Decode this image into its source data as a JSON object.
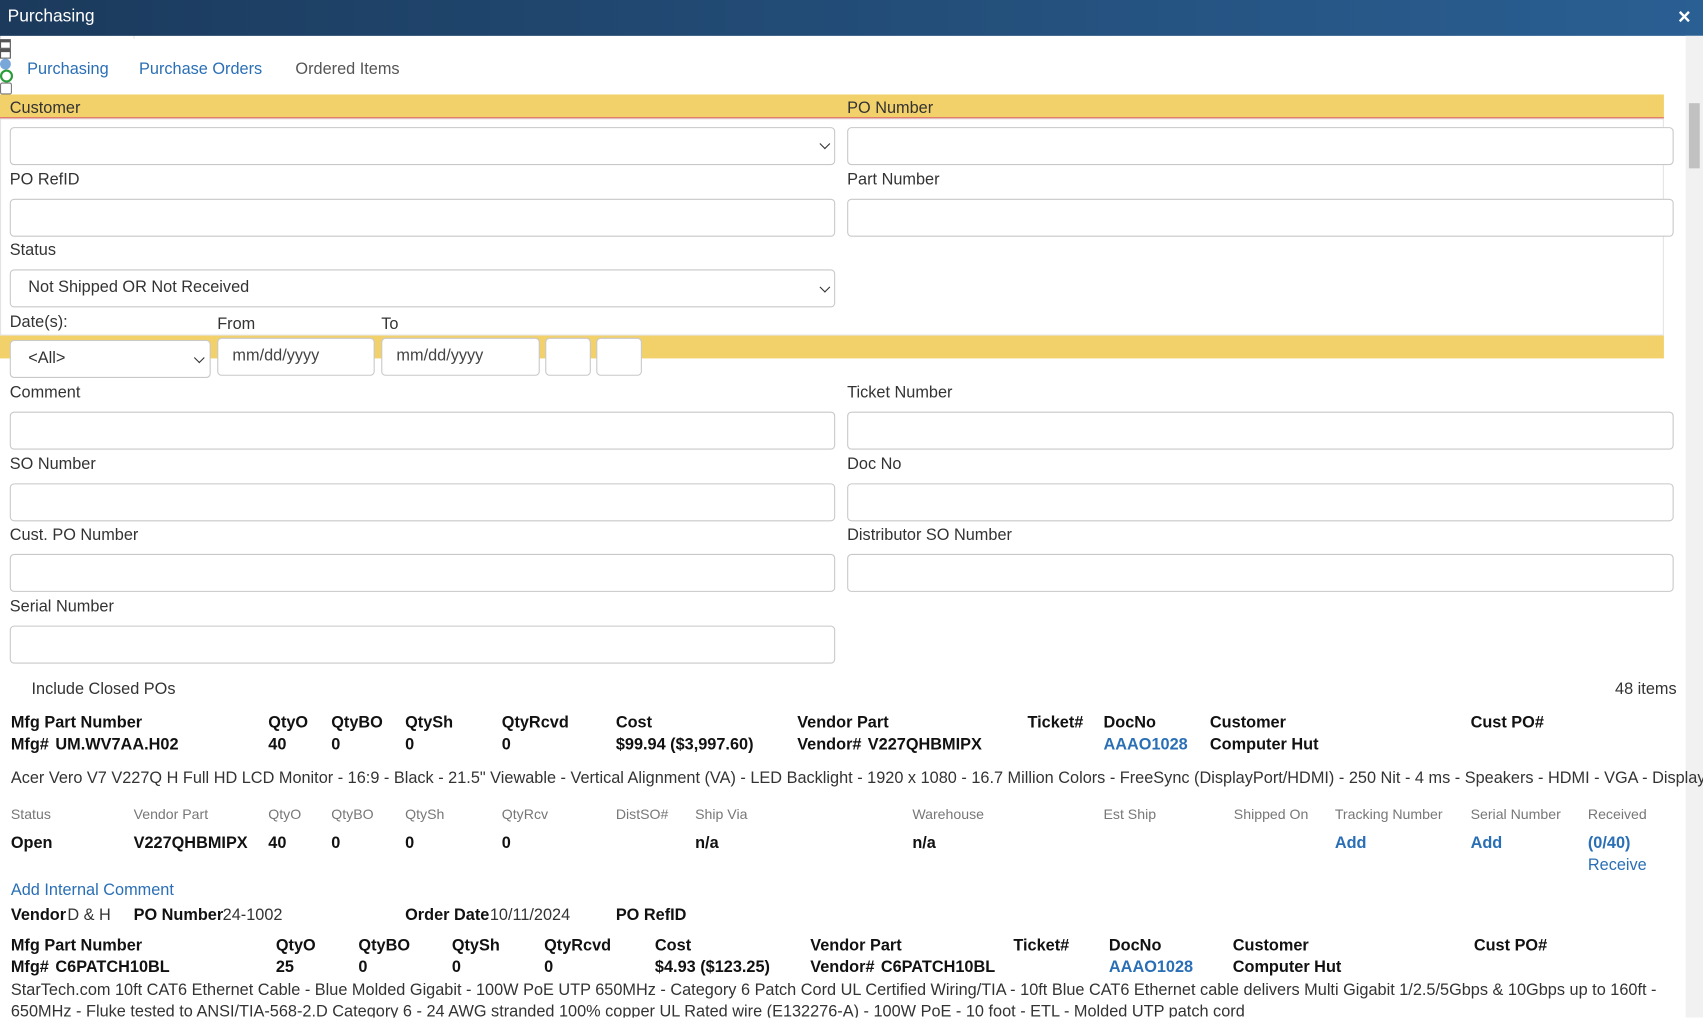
{
  "window": {
    "title": "Purchasing",
    "close": "×"
  },
  "tabs": [
    "Purchasing",
    "Purchase Orders",
    "Ordered Items"
  ],
  "filters": {
    "customer": "Customer",
    "po_number": "PO Number",
    "po_refid": "PO RefID",
    "part_number": "Part Number",
    "status": {
      "label": "Status",
      "value": "Not Shipped OR Not Received"
    },
    "dates": {
      "label": "Date(s):",
      "value": "<All>",
      "from": "From",
      "to": "To",
      "placeholder": "mm/dd/yyyy"
    },
    "comment": "Comment",
    "ticket_number": "Ticket Number",
    "so_number": "SO Number",
    "doc_no": "Doc No",
    "cust_po_number": "Cust. PO Number",
    "distributor_so_number": "Distributor SO Number",
    "serial_number": "Serial Number",
    "include_closed": "Include Closed POs",
    "count": "48 items"
  },
  "items": [
    {
      "headers": [
        "Mfg Part Number",
        "QtyO",
        "QtyBO",
        "QtySh",
        "QtyRcvd",
        "Cost",
        "Vendor Part",
        "Ticket#",
        "DocNo",
        "Customer",
        "Cust PO#"
      ],
      "mfg_label": "Mfg#",
      "mfg": "UM.WV7AA.H02",
      "qtyo": "40",
      "qtybo": "0",
      "qtysh": "0",
      "qtyrcvd": "0",
      "cost": "$99.94 ($3,997.60)",
      "vendor_label": "Vendor#",
      "vendor_part": "V227QHBMIPX",
      "docno": "AAAO1028",
      "customer": "Computer Hut",
      "description": "Acer Vero V7 V227Q H Full HD LCD Monitor - 16:9 - Black - 21.5\" Viewable - Vertical Alignment (VA) - LED Backlight - 1920 x 1080 - 16.7 Million Colors - FreeSync (DisplayPort/HDMI) - 250 Nit - 4 ms - Speakers - HDMI - VGA - DisplayPort",
      "detail_headers": [
        "Status",
        "Vendor Part",
        "QtyO",
        "QtyBO",
        "QtySh",
        "QtyRcv",
        "DistSO#",
        "Ship Via",
        "Warehouse",
        "Est Ship",
        "Shipped On",
        "Tracking Number",
        "Serial Number",
        "Received"
      ],
      "detail": {
        "status": "Open",
        "vendor_part": "V227QHBMIPX",
        "qtyo": "40",
        "qtybo": "0",
        "qtysh": "0",
        "qtyrcv": "0",
        "ship_via": "n/a",
        "warehouse": "n/a",
        "tracking": "Add",
        "serial": "Add",
        "received": "(0/40)",
        "receive": "Receive"
      },
      "add_comment": "Add Internal Comment",
      "footer": {
        "vendor_label": "Vendor",
        "vendor": "D & H",
        "po_label": "PO Number",
        "po": "24-1002",
        "date_label": "Order Date",
        "date": "10/11/2024",
        "refid_label": "PO RefID"
      }
    },
    {
      "headers": [
        "Mfg Part Number",
        "QtyO",
        "QtyBO",
        "QtySh",
        "QtyRcvd",
        "Cost",
        "Vendor Part",
        "Ticket#",
        "DocNo",
        "Customer",
        "Cust PO#"
      ],
      "mfg_label": "Mfg#",
      "mfg": "C6PATCH10BL",
      "qtyo": "25",
      "qtybo": "0",
      "qtysh": "0",
      "qtyrcvd": "0",
      "cost": "$4.93 ($123.25)",
      "vendor_label": "Vendor#",
      "vendor_part": "C6PATCH10BL",
      "docno": "AAAO1028",
      "customer": "Computer Hut",
      "description": "StarTech.com 10ft CAT6 Ethernet Cable - Blue Molded Gigabit - 100W PoE UTP 650MHz - Category 6 Patch Cord UL Certified Wiring/TIA - 10ft Blue CAT6 Ethernet cable delivers Multi Gigabit 1/2.5/5Gbps & 10Gbps up to 160ft - 650MHz - Fluke tested to ANSI/TIA-568-2.D Category 6 - 24 AWG stranded 100% copper UL Rated wire (E132276-A) - 100W PoE - 10 foot - ETL - Molded UTP patch cord"
    }
  ]
}
